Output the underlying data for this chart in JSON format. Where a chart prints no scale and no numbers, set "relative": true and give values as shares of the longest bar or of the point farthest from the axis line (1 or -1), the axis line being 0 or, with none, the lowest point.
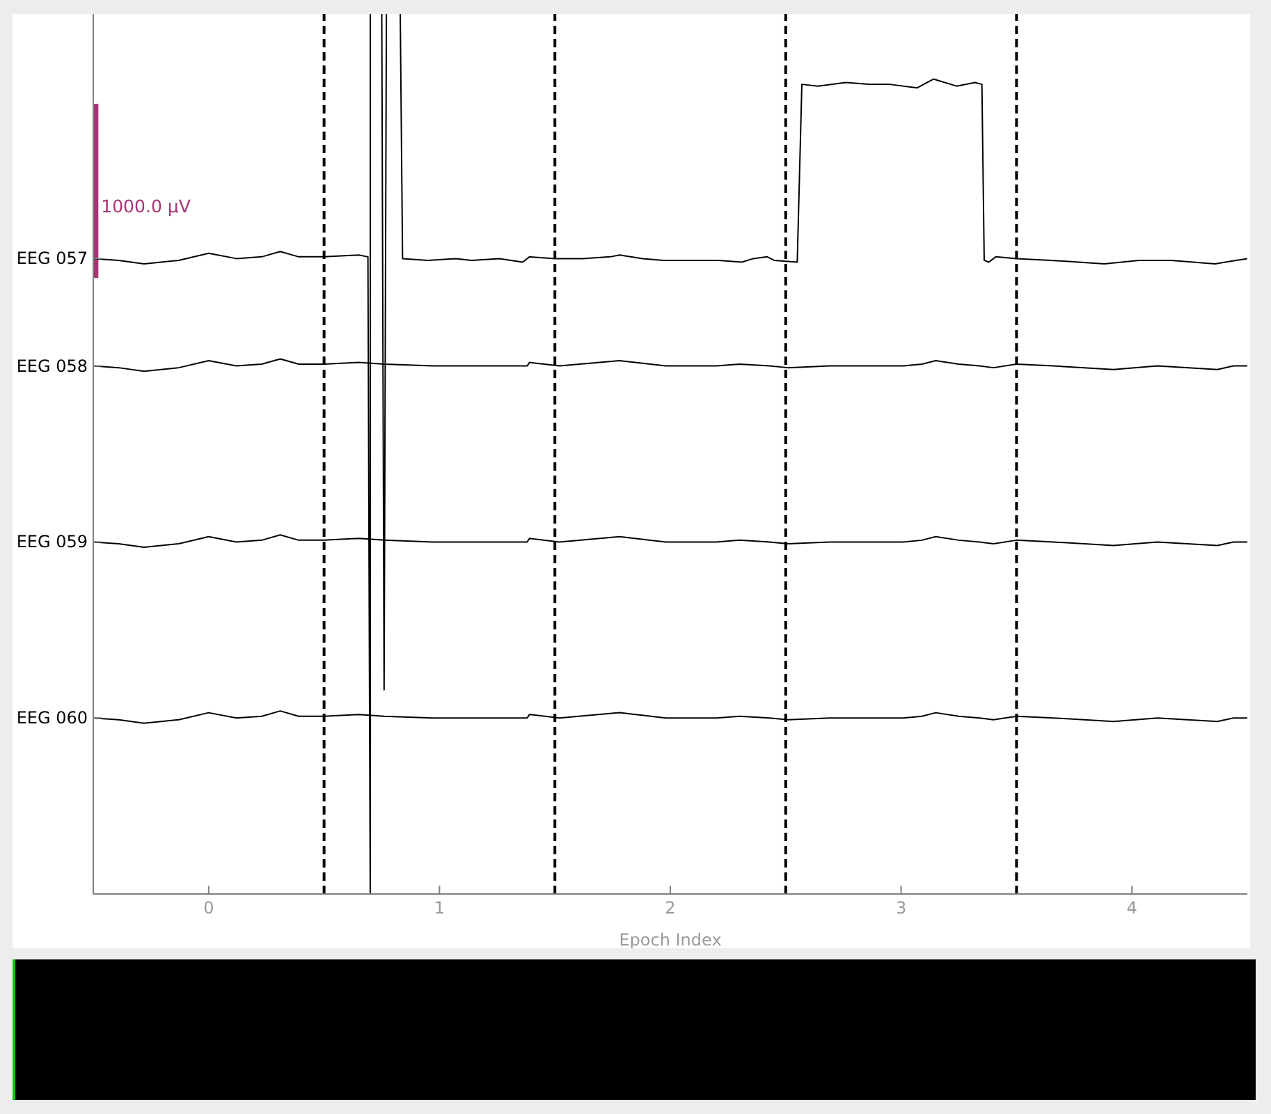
{
  "chart_data": {
    "type": "line",
    "relative": true,
    "xlabel": "Epoch Index",
    "xlim": [
      -0.5,
      4.5
    ],
    "xticks": [
      0,
      1,
      2,
      3,
      4
    ],
    "marker": "none",
    "series": [
      {
        "name": "1000.0 µV",
        "color": "#aa3377",
        "x": [
          -0.49,
          -0.49
        ],
        "values": [
          0.898,
          0.7
        ]
      },
      {
        "name": "EEG 057",
        "color": "#000000",
        "x": [
          -0.5,
          -0.39,
          -0.28,
          -0.13,
          0,
          0.12,
          0.23,
          0.31,
          0.39,
          0.5,
          0.65,
          0.69,
          0.7,
          0.7,
          0.72,
          0.75,
          0.76,
          0.77,
          0.8,
          0.83,
          0.84,
          0.95,
          1.07,
          1.14,
          1.26,
          1.36,
          1.39,
          1.5,
          1.62,
          1.74,
          1.78,
          1.88,
          1.97,
          2.02,
          2.12,
          2.21,
          2.31,
          2.36,
          2.42,
          2.45,
          2.55,
          2.57,
          2.64,
          2.76,
          2.86,
          2.95,
          3.07,
          3.14,
          3.24,
          3.32,
          3.35,
          3.36,
          3.38,
          3.41,
          3.5,
          3.65,
          3.88,
          4.03,
          4.17,
          4.36,
          4.5
        ],
        "values": [
          0.722,
          0.72,
          0.716,
          0.72,
          0.728,
          0.722,
          0.724,
          0.73,
          0.724,
          0.724,
          0.726,
          0.724,
          0,
          1,
          null,
          1,
          0.232,
          1,
          null,
          1,
          0.722,
          0.72,
          0.722,
          0.72,
          0.722,
          0.718,
          0.724,
          0.722,
          0.722,
          0.724,
          0.726,
          0.722,
          0.72,
          0.72,
          0.72,
          0.72,
          0.718,
          0.722,
          0.724,
          0.72,
          0.718,
          0.92,
          0.918,
          0.922,
          0.92,
          0.92,
          0.916,
          0.926,
          0.918,
          0.922,
          0.92,
          0.72,
          0.718,
          0.724,
          0.722,
          0.72,
          0.716,
          0.72,
          0.72,
          0.716,
          0.722
        ]
      },
      {
        "name": "EEG 058",
        "color": "#000000",
        "x": [
          -0.5,
          -0.39,
          -0.28,
          -0.13,
          0,
          0.12,
          0.23,
          0.31,
          0.39,
          0.5,
          0.65,
          0.76,
          0.97,
          1.13,
          1.38,
          1.39,
          1.52,
          1.78,
          1.98,
          2.2,
          2.3,
          2.43,
          2.51,
          2.69,
          2.88,
          3.01,
          3.09,
          3.15,
          3.25,
          3.34,
          3.4,
          3.5,
          3.66,
          3.92,
          4.11,
          4.37,
          4.44,
          4.5
        ],
        "values": [
          0.6,
          0.598,
          0.594,
          0.598,
          0.606,
          0.6,
          0.602,
          0.608,
          0.602,
          0.602,
          0.604,
          0.602,
          0.6,
          0.6,
          0.6,
          0.604,
          0.6,
          0.606,
          0.6,
          0.6,
          0.602,
          0.6,
          0.598,
          0.6,
          0.6,
          0.6,
          0.602,
          0.606,
          0.602,
          0.6,
          0.598,
          0.602,
          0.6,
          0.596,
          0.6,
          0.596,
          0.6,
          0.6
        ]
      },
      {
        "name": "EEG 059",
        "color": "#000000",
        "x": [
          -0.5,
          -0.39,
          -0.28,
          -0.13,
          0,
          0.12,
          0.23,
          0.31,
          0.39,
          0.5,
          0.65,
          0.76,
          0.97,
          1.13,
          1.38,
          1.39,
          1.52,
          1.78,
          1.98,
          2.2,
          2.3,
          2.43,
          2.51,
          2.69,
          2.88,
          3.01,
          3.09,
          3.15,
          3.25,
          3.34,
          3.4,
          3.5,
          3.66,
          3.92,
          4.11,
          4.37,
          4.44,
          4.5
        ],
        "values": [
          0.4,
          0.398,
          0.394,
          0.398,
          0.406,
          0.4,
          0.402,
          0.408,
          0.402,
          0.402,
          0.404,
          0.402,
          0.4,
          0.4,
          0.4,
          0.404,
          0.4,
          0.406,
          0.4,
          0.4,
          0.402,
          0.4,
          0.398,
          0.4,
          0.4,
          0.4,
          0.402,
          0.406,
          0.402,
          0.4,
          0.398,
          0.402,
          0.4,
          0.396,
          0.4,
          0.396,
          0.4,
          0.4
        ]
      },
      {
        "name": "EEG 060",
        "color": "#000000",
        "x": [
          -0.5,
          -0.39,
          -0.28,
          -0.13,
          0,
          0.12,
          0.23,
          0.31,
          0.39,
          0.5,
          0.65,
          0.76,
          0.97,
          1.13,
          1.38,
          1.39,
          1.52,
          1.78,
          1.98,
          2.2,
          2.3,
          2.43,
          2.51,
          2.69,
          2.88,
          3.01,
          3.09,
          3.15,
          3.25,
          3.34,
          3.4,
          3.5,
          3.66,
          3.92,
          4.11,
          4.37,
          4.44,
          4.5
        ],
        "values": [
          0.2,
          0.198,
          0.194,
          0.198,
          0.206,
          0.2,
          0.202,
          0.208,
          0.202,
          0.202,
          0.204,
          0.202,
          0.2,
          0.2,
          0.2,
          0.204,
          0.2,
          0.206,
          0.2,
          0.2,
          0.202,
          0.2,
          0.198,
          0.2,
          0.2,
          0.2,
          0.202,
          0.206,
          0.202,
          0.2,
          0.198,
          0.202,
          0.2,
          0.196,
          0.2,
          0.196,
          0.2,
          0.2
        ]
      }
    ],
    "ref_lines": [
      {
        "axis": "x",
        "value": 0.5,
        "color": "#000000",
        "line_style": "dashed"
      },
      {
        "axis": "x",
        "value": 1.5,
        "color": "#000000",
        "line_style": "dashed"
      },
      {
        "axis": "x",
        "value": 2.5,
        "color": "#000000",
        "line_style": "dashed"
      },
      {
        "axis": "x",
        "value": 3.5,
        "color": "#000000",
        "line_style": "dashed"
      }
    ]
  }
}
